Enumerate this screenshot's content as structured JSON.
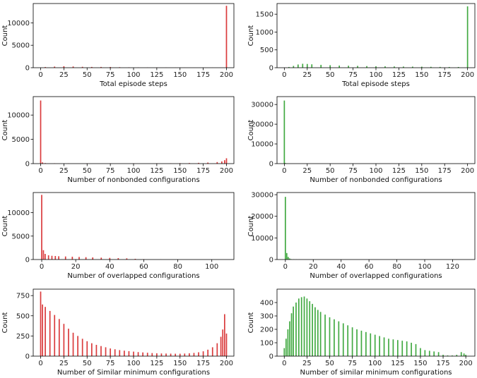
{
  "chart_data": [
    {
      "type": "bar",
      "xlabel": "Total episode steps",
      "ylabel": "Count",
      "xlim": [
        -8,
        208
      ],
      "ylim": [
        0,
        14300
      ],
      "xticks": [
        0,
        25,
        50,
        75,
        100,
        125,
        150,
        175,
        200
      ],
      "yticks": [
        0,
        5000,
        10000
      ],
      "color": "#d62728",
      "series": [
        {
          "values": [
            {
              "x": 5,
              "y": 150
            },
            {
              "x": 15,
              "y": 250
            },
            {
              "x": 25,
              "y": 330
            },
            {
              "x": 35,
              "y": 270
            },
            {
              "x": 45,
              "y": 200
            },
            {
              "x": 55,
              "y": 170
            },
            {
              "x": 65,
              "y": 170
            },
            {
              "x": 75,
              "y": 160
            },
            {
              "x": 85,
              "y": 110
            },
            {
              "x": 95,
              "y": 80
            },
            {
              "x": 105,
              "y": 50
            },
            {
              "x": 115,
              "y": 40
            },
            {
              "x": 125,
              "y": 30
            },
            {
              "x": 135,
              "y": 25
            },
            {
              "x": 145,
              "y": 20
            },
            {
              "x": 155,
              "y": 15
            },
            {
              "x": 165,
              "y": 10
            },
            {
              "x": 175,
              "y": 10
            },
            {
              "x": 185,
              "y": 10
            },
            {
              "x": 200,
              "y": 13800
            }
          ]
        }
      ]
    },
    {
      "type": "bar",
      "xlabel": "Total episode steps",
      "ylabel": "Count",
      "xlim": [
        -8,
        208
      ],
      "ylim": [
        0,
        1800
      ],
      "xticks": [
        0,
        25,
        50,
        75,
        100,
        125,
        150,
        175,
        200
      ],
      "yticks": [
        0,
        500,
        1000,
        1500
      ],
      "color": "#2ca02c",
      "series": [
        {
          "values": [
            {
              "x": 5,
              "y": 20
            },
            {
              "x": 10,
              "y": 50
            },
            {
              "x": 15,
              "y": 90
            },
            {
              "x": 20,
              "y": 110
            },
            {
              "x": 25,
              "y": 105
            },
            {
              "x": 30,
              "y": 95
            },
            {
              "x": 40,
              "y": 80
            },
            {
              "x": 50,
              "y": 70
            },
            {
              "x": 60,
              "y": 60
            },
            {
              "x": 70,
              "y": 55
            },
            {
              "x": 80,
              "y": 50
            },
            {
              "x": 90,
              "y": 45
            },
            {
              "x": 100,
              "y": 40
            },
            {
              "x": 110,
              "y": 38
            },
            {
              "x": 120,
              "y": 35
            },
            {
              "x": 130,
              "y": 32
            },
            {
              "x": 140,
              "y": 30
            },
            {
              "x": 150,
              "y": 28
            },
            {
              "x": 160,
              "y": 25
            },
            {
              "x": 170,
              "y": 22
            },
            {
              "x": 180,
              "y": 20
            },
            {
              "x": 190,
              "y": 20
            },
            {
              "x": 200,
              "y": 1720
            }
          ]
        }
      ]
    },
    {
      "type": "bar",
      "xlabel": "Number of nonbonded configurations",
      "ylabel": "Count",
      "xlim": [
        -8,
        208
      ],
      "ylim": [
        0,
        13800
      ],
      "xticks": [
        0,
        25,
        50,
        75,
        100,
        125,
        150,
        175,
        200
      ],
      "yticks": [
        0,
        5000,
        10000
      ],
      "color": "#d62728",
      "series": [
        {
          "values": [
            {
              "x": 0,
              "y": 13000
            },
            {
              "x": 2,
              "y": 250
            },
            {
              "x": 5,
              "y": 100
            },
            {
              "x": 15,
              "y": 60
            },
            {
              "x": 30,
              "y": 40
            },
            {
              "x": 50,
              "y": 30
            },
            {
              "x": 75,
              "y": 30
            },
            {
              "x": 100,
              "y": 35
            },
            {
              "x": 125,
              "y": 50
            },
            {
              "x": 140,
              "y": 70
            },
            {
              "x": 150,
              "y": 90
            },
            {
              "x": 160,
              "y": 120
            },
            {
              "x": 170,
              "y": 160
            },
            {
              "x": 180,
              "y": 220
            },
            {
              "x": 190,
              "y": 320
            },
            {
              "x": 195,
              "y": 450
            },
            {
              "x": 198,
              "y": 700
            },
            {
              "x": 200,
              "y": 1100
            }
          ]
        }
      ]
    },
    {
      "type": "bar",
      "xlabel": "Number of nonbonded configurations",
      "ylabel": "Count",
      "xlim": [
        -8,
        208
      ],
      "ylim": [
        0,
        34000
      ],
      "xticks": [
        0,
        25,
        50,
        75,
        100,
        125,
        150,
        175,
        200
      ],
      "yticks": [
        0,
        10000,
        20000,
        30000
      ],
      "color": "#2ca02c",
      "series": [
        {
          "values": [
            {
              "x": 0,
              "y": 32000
            },
            {
              "x": 1,
              "y": 300
            },
            {
              "x": 3,
              "y": 50
            }
          ]
        }
      ]
    },
    {
      "type": "bar",
      "xlabel": "Number of overlapped configurations",
      "ylabel": "Count",
      "xlim": [
        -5,
        113
      ],
      "ylim": [
        0,
        14300
      ],
      "xticks": [
        0,
        20,
        40,
        60,
        80,
        100
      ],
      "yticks": [
        0,
        5000,
        10000
      ],
      "color": "#d62728",
      "series": [
        {
          "values": [
            {
              "x": 0,
              "y": 13800
            },
            {
              "x": 1,
              "y": 2000
            },
            {
              "x": 2,
              "y": 1200
            },
            {
              "x": 4,
              "y": 900
            },
            {
              "x": 6,
              "y": 800
            },
            {
              "x": 8,
              "y": 750
            },
            {
              "x": 10,
              "y": 700
            },
            {
              "x": 14,
              "y": 650
            },
            {
              "x": 18,
              "y": 600
            },
            {
              "x": 22,
              "y": 550
            },
            {
              "x": 26,
              "y": 500
            },
            {
              "x": 30,
              "y": 450
            },
            {
              "x": 35,
              "y": 400
            },
            {
              "x": 40,
              "y": 350
            },
            {
              "x": 45,
              "y": 300
            },
            {
              "x": 50,
              "y": 250
            },
            {
              "x": 55,
              "y": 150
            },
            {
              "x": 60,
              "y": 80
            },
            {
              "x": 70,
              "y": 20
            }
          ]
        }
      ]
    },
    {
      "type": "bar",
      "xlabel": "Number of overlapped configurations",
      "ylabel": "Count",
      "xlim": [
        -6,
        136
      ],
      "ylim": [
        0,
        31000
      ],
      "xticks": [
        0,
        20,
        40,
        60,
        80,
        100,
        120
      ],
      "yticks": [
        0,
        10000,
        20000,
        30000
      ],
      "color": "#2ca02c",
      "series": [
        {
          "values": [
            {
              "x": 0,
              "y": 29000
            },
            {
              "x": 1,
              "y": 3000
            },
            {
              "x": 2,
              "y": 1200
            },
            {
              "x": 3,
              "y": 500
            },
            {
              "x": 4,
              "y": 200
            },
            {
              "x": 6,
              "y": 100
            },
            {
              "x": 8,
              "y": 60
            },
            {
              "x": 10,
              "y": 40
            }
          ]
        }
      ]
    },
    {
      "type": "bar",
      "xlabel": "Number of Similar minimum configurations",
      "ylabel": "Count",
      "xlim": [
        -8,
        208
      ],
      "ylim": [
        0,
        830
      ],
      "xticks": [
        0,
        25,
        50,
        75,
        100,
        125,
        150,
        175,
        200
      ],
      "yticks": [
        0,
        250,
        500,
        750
      ],
      "color": "#d62728",
      "series": [
        {
          "values": [
            {
              "x": 0,
              "y": 800
            },
            {
              "x": 2,
              "y": 640
            },
            {
              "x": 5,
              "y": 610
            },
            {
              "x": 10,
              "y": 560
            },
            {
              "x": 15,
              "y": 510
            },
            {
              "x": 20,
              "y": 460
            },
            {
              "x": 25,
              "y": 400
            },
            {
              "x": 30,
              "y": 340
            },
            {
              "x": 35,
              "y": 290
            },
            {
              "x": 40,
              "y": 250
            },
            {
              "x": 45,
              "y": 215
            },
            {
              "x": 50,
              "y": 185
            },
            {
              "x": 55,
              "y": 160
            },
            {
              "x": 60,
              "y": 140
            },
            {
              "x": 65,
              "y": 125
            },
            {
              "x": 70,
              "y": 110
            },
            {
              "x": 75,
              "y": 95
            },
            {
              "x": 80,
              "y": 85
            },
            {
              "x": 85,
              "y": 75
            },
            {
              "x": 90,
              "y": 68
            },
            {
              "x": 95,
              "y": 62
            },
            {
              "x": 100,
              "y": 56
            },
            {
              "x": 105,
              "y": 50
            },
            {
              "x": 110,
              "y": 46
            },
            {
              "x": 115,
              "y": 42
            },
            {
              "x": 120,
              "y": 38
            },
            {
              "x": 125,
              "y": 35
            },
            {
              "x": 130,
              "y": 33
            },
            {
              "x": 135,
              "y": 32
            },
            {
              "x": 140,
              "y": 31
            },
            {
              "x": 145,
              "y": 30
            },
            {
              "x": 150,
              "y": 30
            },
            {
              "x": 155,
              "y": 32
            },
            {
              "x": 160,
              "y": 35
            },
            {
              "x": 165,
              "y": 40
            },
            {
              "x": 170,
              "y": 48
            },
            {
              "x": 175,
              "y": 60
            },
            {
              "x": 180,
              "y": 80
            },
            {
              "x": 185,
              "y": 110
            },
            {
              "x": 190,
              "y": 160
            },
            {
              "x": 194,
              "y": 240
            },
            {
              "x": 196,
              "y": 330
            },
            {
              "x": 198,
              "y": 520
            },
            {
              "x": 200,
              "y": 280
            }
          ]
        }
      ]
    },
    {
      "type": "bar",
      "xlabel": "Number of similar minimum configurations",
      "ylabel": "Count",
      "xlim": [
        -8,
        210
      ],
      "ylim": [
        0,
        500
      ],
      "xticks": [
        0,
        25,
        50,
        75,
        100,
        125,
        150,
        175,
        200
      ],
      "yticks": [
        0,
        100,
        200,
        300,
        400
      ],
      "color": "#2ca02c",
      "series": [
        {
          "values": [
            {
              "x": 0,
              "y": 60
            },
            {
              "x": 2,
              "y": 130
            },
            {
              "x": 4,
              "y": 200
            },
            {
              "x": 6,
              "y": 260
            },
            {
              "x": 8,
              "y": 320
            },
            {
              "x": 10,
              "y": 370
            },
            {
              "x": 13,
              "y": 400
            },
            {
              "x": 16,
              "y": 430
            },
            {
              "x": 19,
              "y": 440
            },
            {
              "x": 22,
              "y": 445
            },
            {
              "x": 25,
              "y": 430
            },
            {
              "x": 28,
              "y": 410
            },
            {
              "x": 31,
              "y": 390
            },
            {
              "x": 34,
              "y": 365
            },
            {
              "x": 37,
              "y": 345
            },
            {
              "x": 40,
              "y": 330
            },
            {
              "x": 45,
              "y": 310
            },
            {
              "x": 50,
              "y": 290
            },
            {
              "x": 55,
              "y": 275
            },
            {
              "x": 60,
              "y": 260
            },
            {
              "x": 65,
              "y": 245
            },
            {
              "x": 70,
              "y": 230
            },
            {
              "x": 75,
              "y": 215
            },
            {
              "x": 80,
              "y": 200
            },
            {
              "x": 85,
              "y": 190
            },
            {
              "x": 90,
              "y": 180
            },
            {
              "x": 95,
              "y": 170
            },
            {
              "x": 100,
              "y": 160
            },
            {
              "x": 105,
              "y": 150
            },
            {
              "x": 110,
              "y": 140
            },
            {
              "x": 115,
              "y": 130
            },
            {
              "x": 120,
              "y": 125
            },
            {
              "x": 125,
              "y": 120
            },
            {
              "x": 130,
              "y": 115
            },
            {
              "x": 135,
              "y": 110
            },
            {
              "x": 140,
              "y": 100
            },
            {
              "x": 145,
              "y": 90
            },
            {
              "x": 150,
              "y": 60
            },
            {
              "x": 155,
              "y": 45
            },
            {
              "x": 160,
              "y": 40
            },
            {
              "x": 165,
              "y": 35
            },
            {
              "x": 170,
              "y": 30
            },
            {
              "x": 175,
              "y": 10
            },
            {
              "x": 180,
              "y": 5
            },
            {
              "x": 185,
              "y": 5
            },
            {
              "x": 190,
              "y": 10
            },
            {
              "x": 195,
              "y": 30
            },
            {
              "x": 198,
              "y": 20
            },
            {
              "x": 200,
              "y": 10
            }
          ]
        }
      ]
    }
  ]
}
